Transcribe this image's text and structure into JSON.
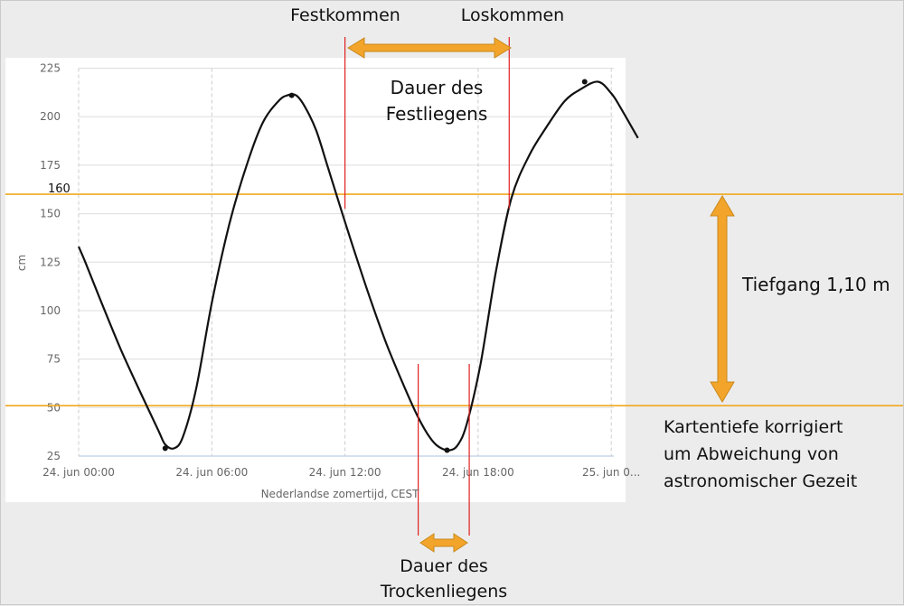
{
  "chart_data": {
    "type": "line",
    "xlabel": "Nederlandse zomertijd, CEST",
    "ylabel": "cm",
    "ylim": [
      25,
      225
    ],
    "yticks": [
      25,
      50,
      75,
      100,
      125,
      150,
      175,
      200,
      225
    ],
    "x_range_hours": [
      0,
      25.3
    ],
    "xticks": [
      {
        "hour": 0,
        "label": "24. jun 00:00"
      },
      {
        "hour": 6,
        "label": "24. jun 06:00"
      },
      {
        "hour": 12,
        "label": "24. jun 12:00"
      },
      {
        "hour": 18,
        "label": "24. jun 18:00"
      },
      {
        "hour": 24,
        "label": "25. jun 0..."
      }
    ],
    "grid": true,
    "series": [
      {
        "x": [
          0,
          0.3,
          1,
          1.9,
          2.9,
          3.6,
          3.9,
          4.3,
          4.7,
          5.3,
          6,
          6.8,
          7.6,
          8.3,
          9,
          9.4,
          9.8,
          10.2,
          10.7,
          11.2,
          11.8,
          12.5,
          13.2,
          13.9,
          14.7,
          15.3,
          15.8,
          16.2,
          16.7,
          17.1,
          17.5,
          18.1,
          18.8,
          19.5,
          20.3,
          21.1,
          21.9,
          22.6,
          23.4,
          24,
          24.4,
          25.2
        ],
        "y": [
          133,
          125,
          105,
          80,
          55,
          38,
          31,
          29,
          35,
          60,
          104,
          145,
          176,
          197,
          208,
          211,
          211,
          205,
          193,
          175,
          153,
          128,
          104,
          82,
          60,
          45,
          35,
          30,
          28,
          31,
          42,
          72,
          120,
          158,
          180,
          195,
          208,
          214,
          218,
          212,
          205,
          189
        ]
      }
    ],
    "extrema": [
      {
        "x": 3.9,
        "y": 29
      },
      {
        "x": 9.6,
        "y": 211
      },
      {
        "x": 16.6,
        "y": 28
      },
      {
        "x": 22.8,
        "y": 218
      }
    ],
    "reference_lines": [
      {
        "y": 160,
        "label": "160"
      },
      {
        "y": 51,
        "label": ""
      }
    ],
    "event_lines": [
      {
        "name": "festkommen",
        "x": 12.0
      },
      {
        "name": "loskommen",
        "x": 19.4
      },
      {
        "name": "trocken-start",
        "x": 15.3
      },
      {
        "name": "trocken-end",
        "x": 17.6
      }
    ],
    "annotations": {
      "festkommen": "Festkommen",
      "loskommen": "Loskommen",
      "festliegen_line1": "Dauer des",
      "festliegen_line2": "Festliegens",
      "tiefgang": "Tiefgang 1,10 m",
      "kartentiefe_line1": "Kartentiefe korrigiert",
      "kartentiefe_line2": "um  Abweichung von",
      "kartentiefe_line3": "astronomischer Gezeit",
      "trocken_line1": "Dauer des",
      "trocken_line2": "Trockenliegens"
    }
  },
  "colors": {
    "orange_line": "#f0a81e",
    "arrow_fill": "#f2a52a",
    "arrow_stroke": "#c9881c",
    "red_line": "#e02020",
    "curve": "#111111",
    "grid": "#dddddd",
    "baseline": "#c9d5ea"
  }
}
